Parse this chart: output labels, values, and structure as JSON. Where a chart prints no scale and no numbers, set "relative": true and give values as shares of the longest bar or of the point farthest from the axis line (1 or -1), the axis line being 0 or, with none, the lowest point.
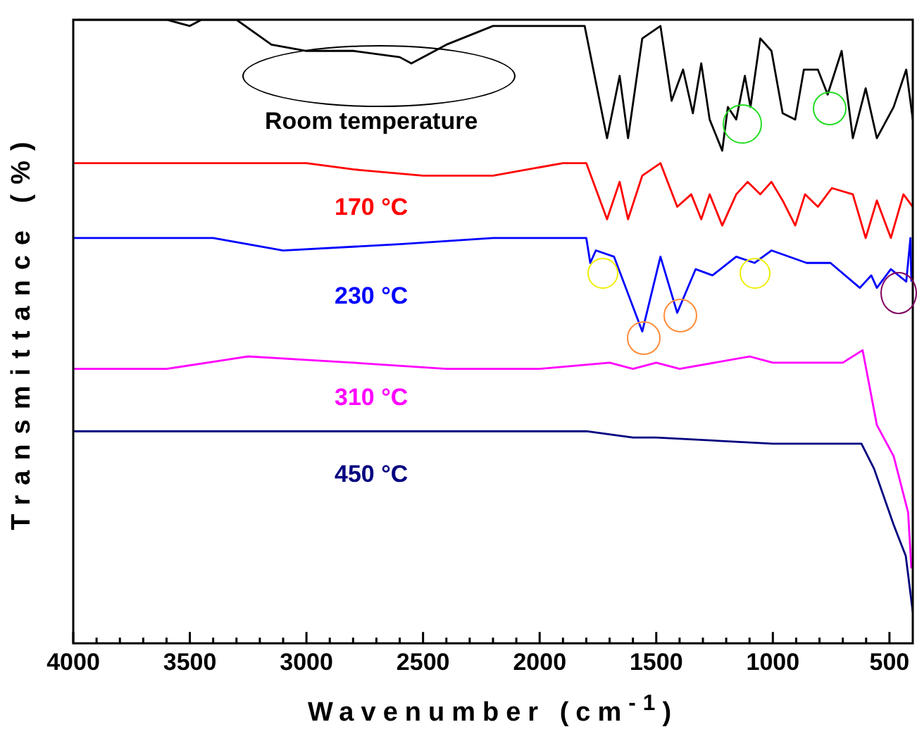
{
  "chart_data": {
    "type": "line",
    "relative": true,
    "xlabel": "Wavenumber (cm$^{-1}$)",
    "ylabel": "Transmittance (%)",
    "xlim": [
      4000,
      400
    ],
    "xticks": [
      4000,
      {
        "value": 3900,
        "label": null
      },
      {
        "value": 3800,
        "label": null
      },
      {
        "value": 3700,
        "label": null
      },
      {
        "value": 3600,
        "label": null
      },
      3500,
      {
        "value": 3400,
        "label": null
      },
      {
        "value": 3300,
        "label": null
      },
      {
        "value": 3200,
        "label": null
      },
      {
        "value": 3100,
        "label": null
      },
      3000,
      {
        "value": 2900,
        "label": null
      },
      {
        "value": 2800,
        "label": null
      },
      {
        "value": 2700,
        "label": null
      },
      {
        "value": 2600,
        "label": null
      },
      2500,
      {
        "value": 2400,
        "label": null
      },
      {
        "value": 2300,
        "label": null
      },
      {
        "value": 2200,
        "label": null
      },
      {
        "value": 2100,
        "label": null
      },
      2000,
      {
        "value": 1900,
        "label": null
      },
      {
        "value": 1800,
        "label": null
      },
      {
        "value": 1700,
        "label": null
      },
      {
        "value": 1600,
        "label": null
      },
      1500,
      {
        "value": 1400,
        "label": null
      },
      {
        "value": 1300,
        "label": null
      },
      {
        "value": 1200,
        "label": null
      },
      {
        "value": 1100,
        "label": null
      },
      1000,
      {
        "value": 900,
        "label": null
      },
      {
        "value": 800,
        "label": null
      },
      {
        "value": 700,
        "label": null
      },
      {
        "value": 600,
        "label": null
      },
      500
    ],
    "marker": "none",
    "line_style": "solid",
    "series": [
      {
        "name": "Room temperature",
        "color": "#000000",
        "x": [
          4000,
          3600,
          3500,
          3450,
          3300,
          3150,
          3000,
          2800,
          2600,
          2550,
          2400,
          2200,
          2000,
          1807,
          1711,
          1657,
          1621,
          1560,
          1482,
          1434,
          1385,
          1343,
          1307,
          1271,
          1217,
          1193,
          1157,
          1120,
          1096,
          1054,
          1006,
          958,
          904,
          867,
          807,
          765,
          705,
          657,
          602,
          554,
          482,
          428,
          400
        ],
        "values": [
          1.0,
          1.0,
          0.99,
          1.0,
          1.0,
          0.96,
          0.95,
          0.95,
          0.94,
          0.93,
          0.96,
          0.99,
          0.99,
          0.99,
          0.81,
          0.91,
          0.81,
          0.97,
          0.99,
          0.87,
          0.92,
          0.85,
          0.93,
          0.84,
          0.79,
          0.86,
          0.84,
          0.91,
          0.86,
          0.97,
          0.95,
          0.85,
          0.84,
          0.92,
          0.92,
          0.88,
          0.95,
          0.81,
          0.89,
          0.81,
          0.86,
          0.92,
          0.84
        ]
      },
      {
        "name": "170 °C",
        "color": "#ff0000",
        "x": [
          4000,
          3000,
          2800,
          2500,
          2200,
          1900,
          1800,
          1711,
          1657,
          1621,
          1560,
          1482,
          1410,
          1350,
          1307,
          1271,
          1217,
          1157,
          1108,
          1054,
          1006,
          958,
          904,
          862,
          807,
          747,
          657,
          602,
          554,
          494,
          440,
          400
        ],
        "values": [
          0.77,
          0.77,
          0.76,
          0.75,
          0.75,
          0.77,
          0.77,
          0.68,
          0.74,
          0.68,
          0.75,
          0.77,
          0.7,
          0.72,
          0.68,
          0.72,
          0.67,
          0.72,
          0.74,
          0.72,
          0.74,
          0.71,
          0.67,
          0.72,
          0.7,
          0.73,
          0.72,
          0.65,
          0.71,
          0.65,
          0.72,
          0.7
        ]
      },
      {
        "name": "230 °C",
        "color": "#0000ff",
        "x": [
          4000,
          3400,
          3100,
          2600,
          2200,
          1900,
          1800,
          1783,
          1759,
          1681,
          1560,
          1482,
          1410,
          1331,
          1259,
          1157,
          1078,
          1006,
          855,
          753,
          627,
          578,
          554,
          494,
          428,
          410,
          406
        ],
        "values": [
          0.65,
          0.65,
          0.63,
          0.64,
          0.65,
          0.65,
          0.65,
          0.61,
          0.63,
          0.62,
          0.5,
          0.62,
          0.53,
          0.6,
          0.59,
          0.62,
          0.61,
          0.63,
          0.61,
          0.61,
          0.57,
          0.59,
          0.57,
          0.6,
          0.58,
          0.65,
          0.58
        ]
      },
      {
        "name": "310 °C",
        "color": "#ff00ff",
        "x": [
          4000,
          3600,
          3250,
          2800,
          2400,
          2000,
          1700,
          1600,
          1500,
          1400,
          1100,
          1000,
          700,
          615,
          554,
          482,
          420,
          406
        ],
        "values": [
          0.44,
          0.44,
          0.46,
          0.45,
          0.44,
          0.44,
          0.45,
          0.44,
          0.45,
          0.44,
          0.46,
          0.45,
          0.45,
          0.47,
          0.35,
          0.3,
          0.21,
          0.12
        ]
      },
      {
        "name": "450 °C",
        "color": "#000080",
        "x": [
          4000,
          1800,
          1600,
          1500,
          1000,
          620,
          566,
          482,
          430,
          400
        ],
        "values": [
          0.34,
          0.34,
          0.33,
          0.33,
          0.32,
          0.32,
          0.28,
          0.19,
          0.14,
          0.05
        ]
      }
    ]
  }
}
